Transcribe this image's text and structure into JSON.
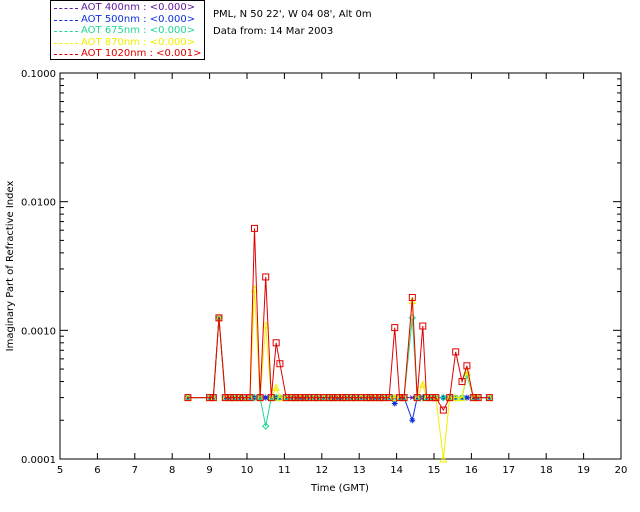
{
  "header": {
    "station": "PML, N 50 22', W 04 08', Alt 0m",
    "date": "Data from: 14 Mar 2003"
  },
  "colors": {
    "axes": "#000000"
  },
  "chart_data": {
    "type": "line",
    "xlabel": "Time (GMT)",
    "ylabel": "Imaginary Part of Refractive Index",
    "xlim": [
      5,
      20
    ],
    "ylim": [
      0.0001,
      0.1
    ],
    "yscale": "log",
    "xticks": [
      "5",
      "6",
      "7",
      "8",
      "9",
      "10",
      "11",
      "12",
      "13",
      "14",
      "15",
      "16",
      "17",
      "18",
      "19",
      "20"
    ],
    "yticks": [
      "0.0001",
      "0.0010",
      "0.0100",
      "0.1000"
    ],
    "grid": false,
    "legend_position": "top-left",
    "x": [
      8.42,
      9.0,
      9.1,
      9.25,
      9.42,
      9.55,
      9.65,
      9.8,
      9.9,
      10.08,
      10.2,
      10.35,
      10.5,
      10.65,
      10.78,
      10.88,
      11.05,
      11.2,
      11.3,
      11.42,
      11.55,
      11.65,
      11.8,
      11.9,
      12.05,
      12.2,
      12.3,
      12.42,
      12.55,
      12.65,
      12.8,
      12.9,
      13.05,
      13.2,
      13.3,
      13.42,
      13.55,
      13.65,
      13.8,
      13.95,
      14.08,
      14.2,
      14.42,
      14.55,
      14.7,
      14.8,
      14.95,
      15.05,
      15.25,
      15.42,
      15.58,
      15.75,
      15.88,
      16.05,
      16.18,
      16.48
    ],
    "series": [
      {
        "name": "AOT  400nm : <0.000>",
        "color": "#5c1a9e",
        "marker": "x",
        "values": [
          0.0003,
          0.0003,
          0.0003,
          0.00125,
          0.0003,
          0.0003,
          0.0003,
          0.0003,
          0.0003,
          0.0003,
          0.0003,
          0.0003,
          0.0003,
          0.0003,
          0.0003,
          0.0003,
          0.0003,
          0.0003,
          0.0003,
          0.0003,
          0.0003,
          0.0003,
          0.0003,
          0.0003,
          0.0003,
          0.0003,
          0.0003,
          0.0003,
          0.0003,
          0.0003,
          0.0003,
          0.0003,
          0.0003,
          0.0003,
          0.0003,
          0.0003,
          0.0003,
          0.0003,
          0.0003,
          0.0003,
          0.0003,
          0.0003,
          0.0003,
          0.0003,
          0.0003,
          0.0003,
          0.0003,
          0.0003,
          0.0003,
          0.0003,
          0.0003,
          0.0003,
          0.0003,
          0.0003,
          0.0003,
          0.0003
        ]
      },
      {
        "name": "AOT  500nm : <0.000>",
        "color": "#1030e0",
        "marker": "asterisk",
        "values": [
          0.0003,
          0.0003,
          0.0003,
          0.00125,
          0.0003,
          0.0003,
          0.0003,
          0.0003,
          0.0003,
          0.0003,
          0.0003,
          0.0003,
          0.0003,
          0.0003,
          0.0003,
          0.0003,
          0.0003,
          0.0003,
          0.0003,
          0.0003,
          0.0003,
          0.0003,
          0.0003,
          0.0003,
          0.0003,
          0.0003,
          0.0003,
          0.0003,
          0.0003,
          0.0003,
          0.0003,
          0.0003,
          0.0003,
          0.0003,
          0.0003,
          0.0003,
          0.0003,
          0.0003,
          0.0003,
          0.00027,
          0.0003,
          0.0003,
          0.0002,
          0.0003,
          0.0003,
          0.0003,
          0.0003,
          0.0003,
          0.0003,
          0.0003,
          0.0003,
          0.0003,
          0.0003,
          0.0003,
          0.0003,
          0.0003
        ]
      },
      {
        "name": "AOT  675nm : <0.000>",
        "color": "#20d890",
        "marker": "diamond",
        "values": [
          0.0003,
          0.0003,
          0.0003,
          0.00125,
          0.0003,
          0.0003,
          0.0003,
          0.0003,
          0.0003,
          0.0003,
          0.0003,
          0.0003,
          0.00018,
          0.0003,
          0.0003,
          0.0003,
          0.0003,
          0.0003,
          0.0003,
          0.0003,
          0.0003,
          0.0003,
          0.0003,
          0.0003,
          0.0003,
          0.0003,
          0.0003,
          0.0003,
          0.0003,
          0.0003,
          0.0003,
          0.0003,
          0.0003,
          0.0003,
          0.0003,
          0.0003,
          0.0003,
          0.0003,
          0.0003,
          0.0003,
          0.0003,
          0.0003,
          0.00125,
          0.0003,
          0.0003,
          0.0003,
          0.0003,
          0.0003,
          0.0003,
          0.0003,
          0.0003,
          0.0003,
          0.00045,
          0.0003,
          0.0003,
          0.0003
        ]
      },
      {
        "name": "AOT  870nm : <0.000>",
        "color": "#f0f000",
        "marker": "triangle",
        "values": [
          0.0003,
          0.0003,
          0.0003,
          0.00125,
          0.0003,
          0.0003,
          0.0003,
          0.0003,
          0.0003,
          0.0003,
          0.0021,
          0.0003,
          0.0011,
          0.0003,
          0.00036,
          0.0003,
          0.0003,
          0.0003,
          0.0003,
          0.0003,
          0.0003,
          0.0003,
          0.0003,
          0.0003,
          0.0003,
          0.0003,
          0.0003,
          0.0003,
          0.0003,
          0.0003,
          0.0003,
          0.0003,
          0.0003,
          0.0003,
          0.0003,
          0.0003,
          0.0003,
          0.0003,
          0.0003,
          0.0003,
          0.0003,
          0.0003,
          0.0017,
          0.0003,
          0.00038,
          0.0003,
          0.0003,
          0.0003,
          0.0001,
          0.0003,
          0.0003,
          0.0003,
          0.00048,
          0.0003,
          0.0003,
          0.0003
        ]
      },
      {
        "name": "AOT 1020nm : <0.001>",
        "color": "#e00000",
        "marker": "square",
        "values": [
          0.0003,
          0.0003,
          0.0003,
          0.00125,
          0.0003,
          0.0003,
          0.0003,
          0.0003,
          0.0003,
          0.0003,
          0.0062,
          0.0003,
          0.0026,
          0.0003,
          0.0008,
          0.00055,
          0.0003,
          0.0003,
          0.0003,
          0.0003,
          0.0003,
          0.0003,
          0.0003,
          0.0003,
          0.0003,
          0.0003,
          0.0003,
          0.0003,
          0.0003,
          0.0003,
          0.0003,
          0.0003,
          0.0003,
          0.0003,
          0.0003,
          0.0003,
          0.0003,
          0.0003,
          0.0003,
          0.00105,
          0.0003,
          0.0003,
          0.0018,
          0.0003,
          0.00108,
          0.0003,
          0.0003,
          0.0003,
          0.00024,
          0.0003,
          0.00068,
          0.0004,
          0.00053,
          0.0003,
          0.0003,
          0.0003
        ]
      }
    ]
  }
}
